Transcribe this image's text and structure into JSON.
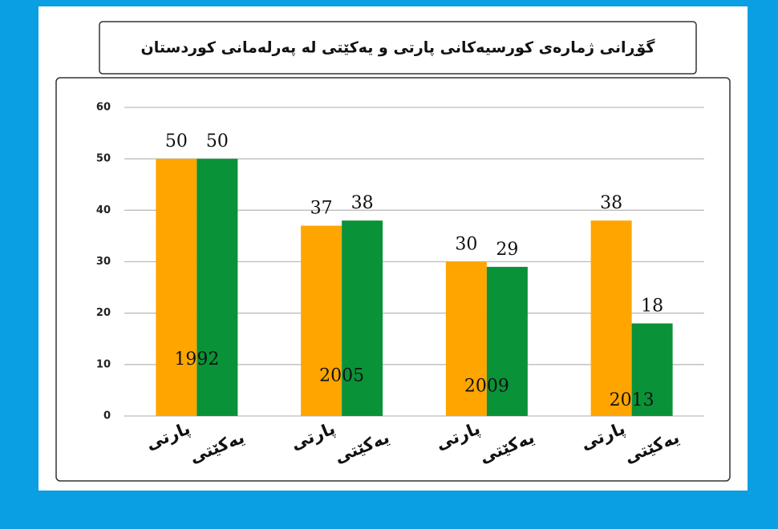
{
  "chart_data": {
    "type": "bar",
    "title": "گۆڕانی ژمارەی کورسیەکانی پارتی و یەکێتی لە پەرلەمانی کوردستان",
    "categories": [
      "1992",
      "2005",
      "2009",
      "2013"
    ],
    "series": [
      {
        "name": "پارتی",
        "color": "#ffa500",
        "values": [
          50,
          37,
          30,
          38
        ]
      },
      {
        "name": "یەکێتی",
        "color": "#0a9238",
        "values": [
          50,
          38,
          29,
          18
        ]
      }
    ],
    "ylim": [
      0,
      60
    ],
    "yticks": [
      0,
      10,
      20,
      30,
      40,
      50,
      60
    ],
    "grid": true
  }
}
